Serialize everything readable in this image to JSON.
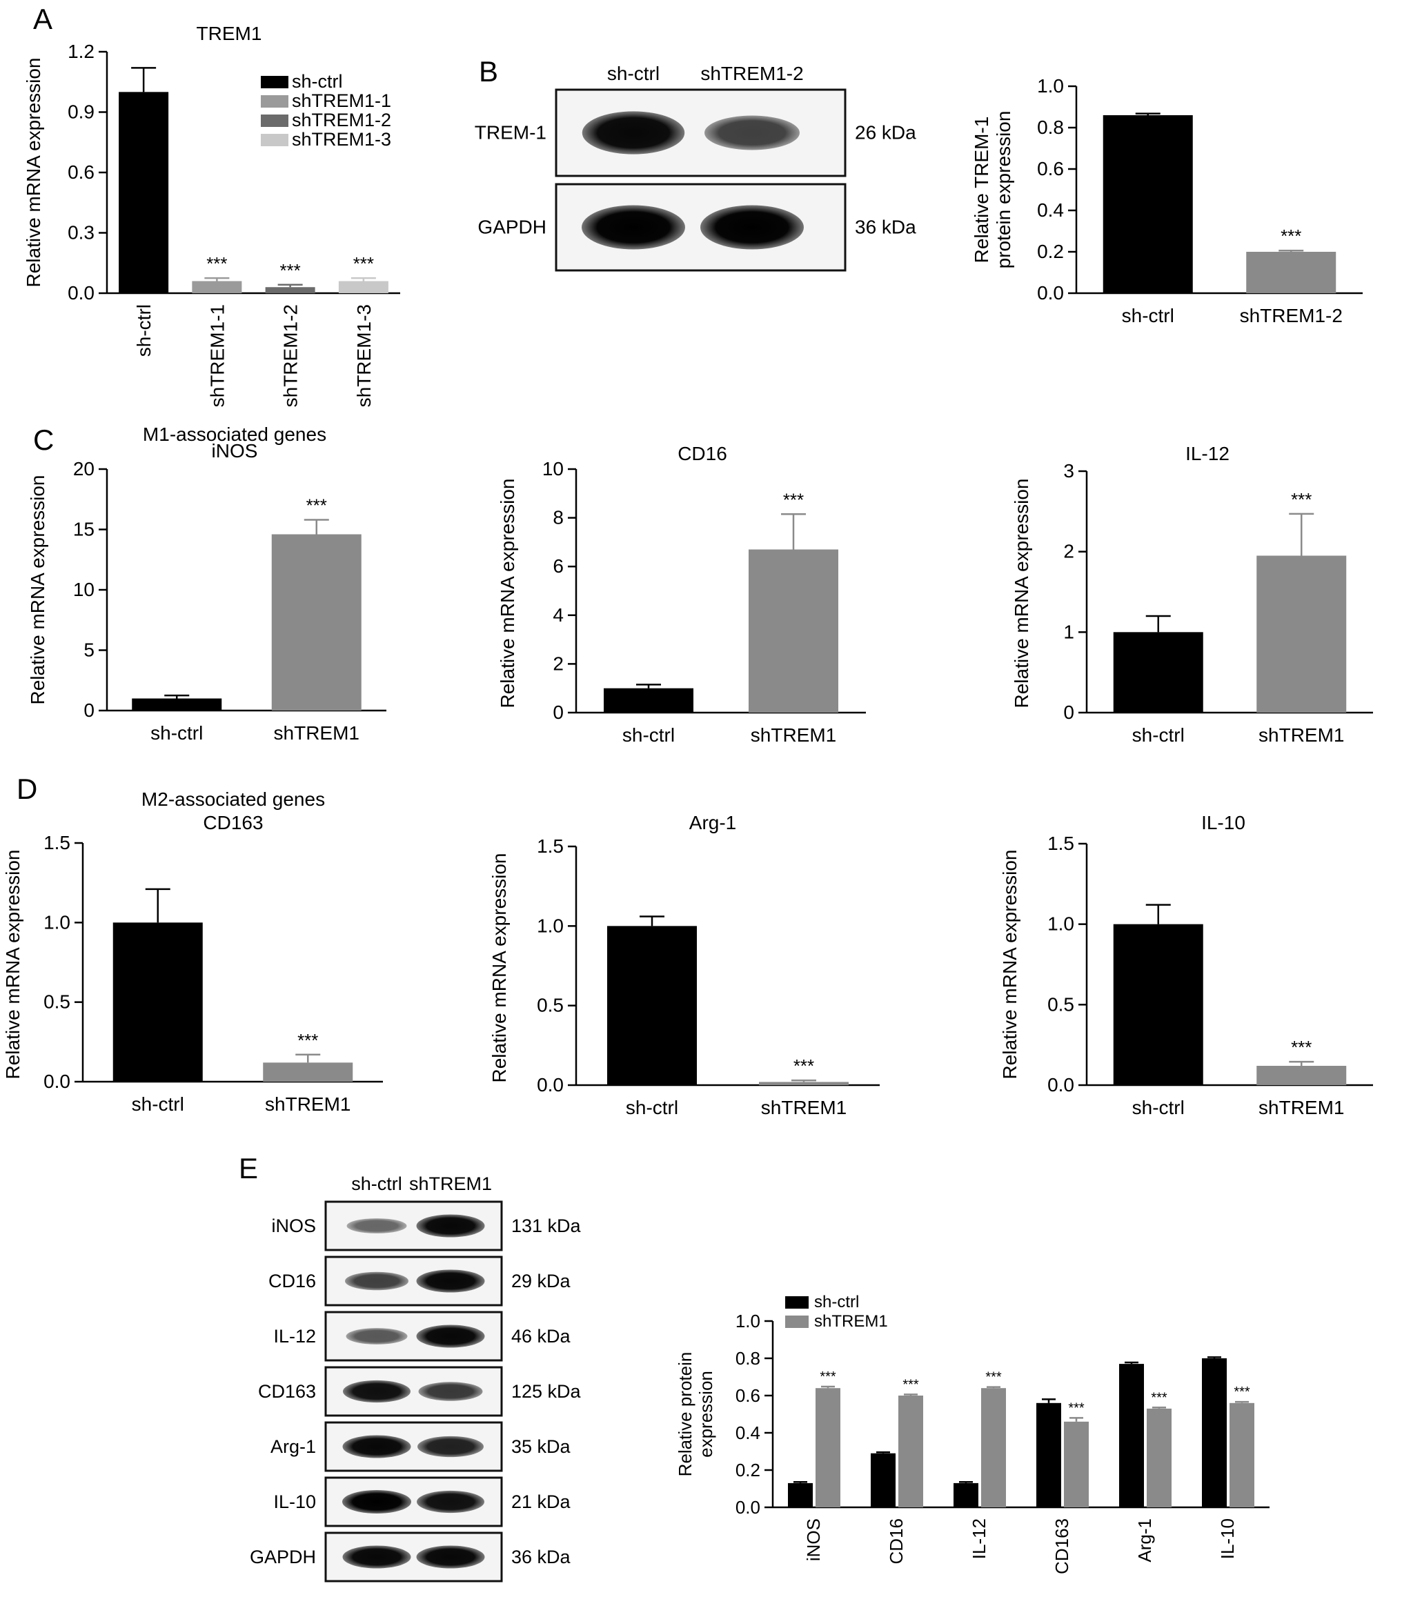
{
  "panels": [
    {
      "key": "A",
      "letter": "A"
    },
    {
      "key": "B",
      "letter": "B"
    },
    {
      "key": "C",
      "letter": "C"
    },
    {
      "key": "D",
      "letter": "D"
    },
    {
      "key": "E",
      "letter": "E"
    }
  ],
  "groups": {
    "M1": [
      "M1-associated genes"
    ],
    "M2": [
      "M2-associated genes"
    ]
  },
  "colors": {
    "black": "#000000",
    "gray": "#8a8a8a",
    "light_gray": "#9a9a9a",
    "dark_gray": "#6b6b6b",
    "pale_gray": "#c8c8c8"
  },
  "chart_data": [
    {
      "id": "A",
      "type": "bar",
      "title": "TREM1",
      "ylabel": "Relative mRNA expression",
      "ylim": [
        0,
        1.2
      ],
      "yticks": [
        0.0,
        0.3,
        0.6,
        0.9,
        1.2
      ],
      "categories": [
        "sh-ctrl",
        "shTREM1-1",
        "shTREM1-2",
        "shTREM1-3"
      ],
      "values": [
        1.0,
        0.06,
        0.03,
        0.06
      ],
      "errors": [
        0.12,
        0.015,
        0.012,
        0.015
      ],
      "bar_colors": [
        "#000000",
        "#9a9a9a",
        "#6b6b6b",
        "#c8c8c8"
      ],
      "annotations": [
        "",
        "***",
        "***",
        "***"
      ],
      "legend": [
        "sh-ctrl",
        "shTREM1-1",
        "shTREM1-2",
        "shTREM1-3"
      ],
      "xlabel_rotated": true
    },
    {
      "id": "B",
      "type": "bar",
      "title": "",
      "ylabel": "Relative TREM-1 protein expression",
      "ylim": [
        0,
        1.0
      ],
      "yticks": [
        0.0,
        0.2,
        0.4,
        0.6,
        0.8,
        1.0
      ],
      "categories": [
        "sh-ctrl",
        "shTREM1-2"
      ],
      "values": [
        0.86,
        0.2
      ],
      "errors": [
        0.008,
        0.006
      ],
      "bar_colors": [
        "#000000",
        "#8a8a8a"
      ],
      "annotations": [
        "",
        "***"
      ]
    },
    {
      "id": "C1",
      "type": "bar",
      "title": "iNOS",
      "ylabel": "Relative mRNA expression",
      "ylim": [
        0,
        20
      ],
      "yticks": [
        0,
        5,
        10,
        15,
        20
      ],
      "categories": [
        "sh-ctrl",
        "shTREM1"
      ],
      "values": [
        1.0,
        14.6
      ],
      "errors": [
        0.25,
        1.2
      ],
      "bar_colors": [
        "#000000",
        "#8a8a8a"
      ],
      "annotations": [
        "",
        "***"
      ]
    },
    {
      "id": "C2",
      "type": "bar",
      "title": "CD16",
      "ylabel": "Relative mRNA expression",
      "ylim": [
        0,
        10
      ],
      "yticks": [
        0,
        2,
        4,
        6,
        8,
        10
      ],
      "categories": [
        "sh-ctrl",
        "shTREM1"
      ],
      "values": [
        1.0,
        6.7
      ],
      "errors": [
        0.15,
        1.45
      ],
      "bar_colors": [
        "#000000",
        "#8a8a8a"
      ],
      "annotations": [
        "",
        "***"
      ]
    },
    {
      "id": "C3",
      "type": "bar",
      "title": "IL-12",
      "ylabel": "Relative mRNA expression",
      "ylim": [
        0,
        3
      ],
      "yticks": [
        0,
        1,
        2,
        3
      ],
      "categories": [
        "sh-ctrl",
        "shTREM1"
      ],
      "values": [
        1.0,
        1.95
      ],
      "errors": [
        0.2,
        0.52
      ],
      "bar_colors": [
        "#000000",
        "#8a8a8a"
      ],
      "annotations": [
        "",
        "***"
      ]
    },
    {
      "id": "D1",
      "type": "bar",
      "title": "CD163",
      "ylabel": "Relative mRNA expression",
      "ylim": [
        0,
        1.5
      ],
      "yticks": [
        0.0,
        0.5,
        1.0,
        1.5
      ],
      "categories": [
        "sh-ctrl",
        "shTREM1"
      ],
      "values": [
        1.0,
        0.12
      ],
      "errors": [
        0.21,
        0.05
      ],
      "bar_colors": [
        "#000000",
        "#8a8a8a"
      ],
      "annotations": [
        "",
        "***"
      ]
    },
    {
      "id": "D2",
      "type": "bar",
      "title": "Arg-1",
      "ylabel": "Relative mRNA expression",
      "ylim": [
        0,
        1.5
      ],
      "yticks": [
        0.0,
        0.5,
        1.0,
        1.5
      ],
      "categories": [
        "sh-ctrl",
        "shTREM1"
      ],
      "values": [
        1.0,
        0.02
      ],
      "errors": [
        0.06,
        0.01
      ],
      "bar_colors": [
        "#000000",
        "#8a8a8a"
      ],
      "annotations": [
        "",
        "***"
      ]
    },
    {
      "id": "D3",
      "type": "bar",
      "title": "IL-10",
      "ylabel": "Relative mRNA expression",
      "ylim": [
        0,
        1.5
      ],
      "yticks": [
        0.0,
        0.5,
        1.0,
        1.5
      ],
      "categories": [
        "sh-ctrl",
        "shTREM1"
      ],
      "values": [
        1.0,
        0.12
      ],
      "errors": [
        0.12,
        0.025
      ],
      "bar_colors": [
        "#000000",
        "#8a8a8a"
      ],
      "annotations": [
        "",
        "***"
      ]
    },
    {
      "id": "E",
      "type": "bar",
      "ylabel": "Relative protein expression",
      "ylim": [
        0,
        1.0
      ],
      "yticks": [
        0.0,
        0.2,
        0.4,
        0.6,
        0.8,
        1.0
      ],
      "categories": [
        "iNOS",
        "CD16",
        "IL-12",
        "CD163",
        "Arg-1",
        "IL-10"
      ],
      "series": [
        {
          "name": "sh-ctrl",
          "color": "#000000",
          "values": [
            0.13,
            0.29,
            0.13,
            0.56,
            0.77,
            0.8
          ],
          "errors": [
            0.006,
            0.006,
            0.006,
            0.02,
            0.008,
            0.006
          ]
        },
        {
          "name": "shTREM1",
          "color": "#8a8a8a",
          "values": [
            0.64,
            0.6,
            0.64,
            0.46,
            0.53,
            0.56
          ],
          "errors": [
            0.008,
            0.006,
            0.006,
            0.02,
            0.006,
            0.006
          ]
        }
      ],
      "annotations": [
        "***",
        "***",
        "***",
        "***",
        "***",
        "***"
      ],
      "legend_position": "top-left",
      "xlabel_rotated": true
    }
  ],
  "blots": {
    "B": {
      "lanes": [
        "sh-ctrl",
        "shTREM1-2"
      ],
      "rows": [
        {
          "label": "TREM-1",
          "size": "26 kDa",
          "intensity": [
            0.95,
            0.6
          ]
        },
        {
          "label": "GAPDH",
          "size": "36 kDa",
          "intensity": [
            1.0,
            1.0
          ]
        }
      ]
    },
    "E": {
      "lanes": [
        "sh-ctrl",
        "shTREM1"
      ],
      "rows": [
        {
          "label": "iNOS",
          "size": "131 kDa",
          "intensity": [
            0.35,
            0.95
          ]
        },
        {
          "label": "CD16",
          "size": "29 kDa",
          "intensity": [
            0.6,
            0.95
          ]
        },
        {
          "label": "IL-12",
          "size": "46 kDa",
          "intensity": [
            0.45,
            0.95
          ]
        },
        {
          "label": "CD163",
          "size": "125 kDa",
          "intensity": [
            0.9,
            0.65
          ]
        },
        {
          "label": "Arg-1",
          "size": "35 kDa",
          "intensity": [
            0.95,
            0.8
          ]
        },
        {
          "label": "IL-10",
          "size": "21 kDa",
          "intensity": [
            1.0,
            0.9
          ]
        },
        {
          "label": "GAPDH",
          "size": "36 kDa",
          "intensity": [
            0.95,
            0.95
          ]
        }
      ]
    }
  }
}
